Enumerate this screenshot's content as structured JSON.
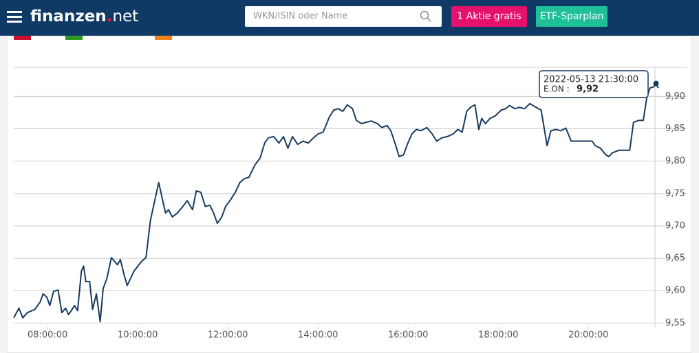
{
  "header": {
    "logo_main": "finanzen",
    "logo_suffix": "net",
    "search_placeholder": "WKN/ISIN oder Name",
    "buttons": [
      "1 Aktie gratis",
      "ETF-Sparplan"
    ]
  },
  "chart_data": {
    "type": "line",
    "color": "#173a5e",
    "xlim": [
      "07:15:00",
      "21:35:00"
    ],
    "xticks": [
      "08:00:00",
      "10:00:00",
      "12:00:00",
      "14:00:00",
      "16:00:00",
      "18:00:00",
      "20:00:00"
    ],
    "ylim": [
      9.544,
      9.945
    ],
    "yticks": [
      {
        "value": 9.55,
        "label": "9,55"
      },
      {
        "value": 9.6,
        "label": "9,60"
      },
      {
        "value": 9.65,
        "label": "9,65"
      },
      {
        "value": 9.7,
        "label": "9,70"
      },
      {
        "value": 9.75,
        "label": "9,75"
      },
      {
        "value": 9.8,
        "label": "9,80"
      },
      {
        "value": 9.85,
        "label": "9,85"
      },
      {
        "value": 9.9,
        "label": "9,90"
      }
    ],
    "grid": true,
    "x": [
      "07:15:00",
      "07:22:00",
      "07:27:00",
      "07:33:00",
      "07:43:00",
      "07:50:00",
      "07:54:00",
      "07:59:00",
      "08:03:00",
      "08:08:00",
      "08:14:00",
      "08:19:00",
      "08:24:00",
      "08:28:00",
      "08:36:00",
      "08:40:00",
      "08:45:00",
      "08:48:00",
      "08:51:00",
      "08:56:00",
      "09:00:00",
      "09:05:00",
      "09:10:00",
      "09:14:00",
      "09:19:00",
      "09:25:00",
      "09:33:00",
      "09:37:00",
      "09:42:00",
      "09:46:00",
      "09:55:00",
      "10:05:00",
      "10:11:00",
      "10:17:00",
      "10:23:00",
      "10:28:00",
      "10:32:00",
      "10:37:00",
      "10:41:00",
      "10:46:00",
      "10:53:00",
      "11:00:00",
      "11:06:00",
      "11:13:00",
      "11:18:00",
      "11:24:00",
      "11:30:00",
      "11:36:00",
      "11:41:00",
      "11:46:00",
      "11:52:00",
      "11:57:00",
      "12:04:00",
      "12:10:00",
      "12:16:00",
      "12:22:00",
      "12:28:00",
      "12:36:00",
      "12:43:00",
      "12:49:00",
      "12:54:00",
      "13:01:00",
      "13:08:00",
      "13:14:00",
      "13:20:00",
      "13:26:00",
      "13:33:00",
      "13:40:00",
      "13:47:00",
      "13:54:00",
      "14:00:00",
      "14:07:00",
      "14:15:00",
      "14:21:00",
      "14:27:00",
      "14:33:00",
      "14:39:00",
      "14:46:00",
      "14:51:00",
      "14:58:00",
      "15:04:00",
      "15:11:00",
      "15:19:00",
      "15:25:00",
      "15:32:00",
      "15:37:00",
      "15:43:00",
      "15:48:00",
      "15:54:00",
      "15:59:00",
      "16:05:00",
      "16:11:00",
      "16:17:00",
      "16:25:00",
      "16:32:00",
      "16:38:00",
      "16:45:00",
      "16:52:00",
      "17:00:00",
      "17:06:00",
      "17:12:00",
      "17:18:00",
      "17:24:00",
      "17:29:00",
      "17:34:00",
      "17:38:00",
      "17:43:00",
      "17:49:00",
      "17:56:00",
      "18:04:00",
      "18:10:00",
      "18:15:00",
      "18:22:00",
      "18:28:00",
      "18:35:00",
      "18:42:00",
      "18:49:00",
      "18:57:00",
      "19:05:00",
      "19:10:00",
      "19:17:00",
      "19:23:00",
      "19:30:00",
      "19:37:00",
      "19:51:00",
      "20:05:00",
      "20:09:00",
      "20:16:00",
      "20:23:00",
      "20:27:00",
      "20:32:00",
      "20:41:00",
      "20:55:00",
      "21:00:00",
      "21:07:00",
      "21:13:00",
      "21:18:00",
      "21:22:00",
      "21:27:00",
      "21:30:00",
      "21:33:00"
    ],
    "series": [
      {
        "name": "E.ON :",
        "color": "#173a5e",
        "values": [
          9.558,
          9.573,
          9.558,
          9.566,
          9.571,
          9.582,
          9.595,
          9.59,
          9.577,
          9.599,
          9.601,
          9.566,
          9.573,
          9.563,
          9.577,
          9.569,
          9.63,
          9.638,
          9.614,
          9.614,
          9.571,
          9.595,
          9.552,
          9.603,
          9.619,
          9.651,
          9.64,
          9.648,
          9.624,
          9.608,
          9.63,
          9.645,
          9.651,
          9.709,
          9.741,
          9.767,
          9.746,
          9.72,
          9.725,
          9.714,
          9.72,
          9.73,
          9.739,
          9.725,
          9.754,
          9.752,
          9.73,
          9.732,
          9.72,
          9.704,
          9.714,
          9.73,
          9.741,
          9.752,
          9.767,
          9.773,
          9.775,
          9.794,
          9.805,
          9.828,
          9.836,
          9.838,
          9.828,
          9.838,
          9.82,
          9.838,
          9.826,
          9.831,
          9.828,
          9.836,
          9.842,
          9.845,
          9.868,
          9.879,
          9.881,
          9.877,
          9.887,
          9.881,
          9.863,
          9.858,
          9.86,
          9.862,
          9.858,
          9.852,
          9.855,
          9.847,
          9.826,
          9.807,
          9.81,
          9.826,
          9.842,
          9.849,
          9.847,
          9.852,
          9.842,
          9.831,
          9.836,
          9.838,
          9.842,
          9.849,
          9.845,
          9.877,
          9.884,
          9.887,
          9.849,
          9.866,
          9.858,
          9.866,
          9.87,
          9.879,
          9.881,
          9.886,
          9.881,
          9.883,
          9.881,
          9.889,
          9.884,
          9.879,
          9.824,
          9.847,
          9.849,
          9.847,
          9.851,
          9.831,
          9.831,
          9.831,
          9.824,
          9.82,
          9.81,
          9.807,
          9.813,
          9.817,
          9.817,
          9.86,
          9.863,
          9.863,
          9.9,
          9.913,
          9.915,
          9.92,
          9.913
        ]
      }
    ],
    "tooltip": {
      "date": "2022-05-13 21:30:00",
      "index": 139,
      "value_label": "9,92"
    }
  }
}
